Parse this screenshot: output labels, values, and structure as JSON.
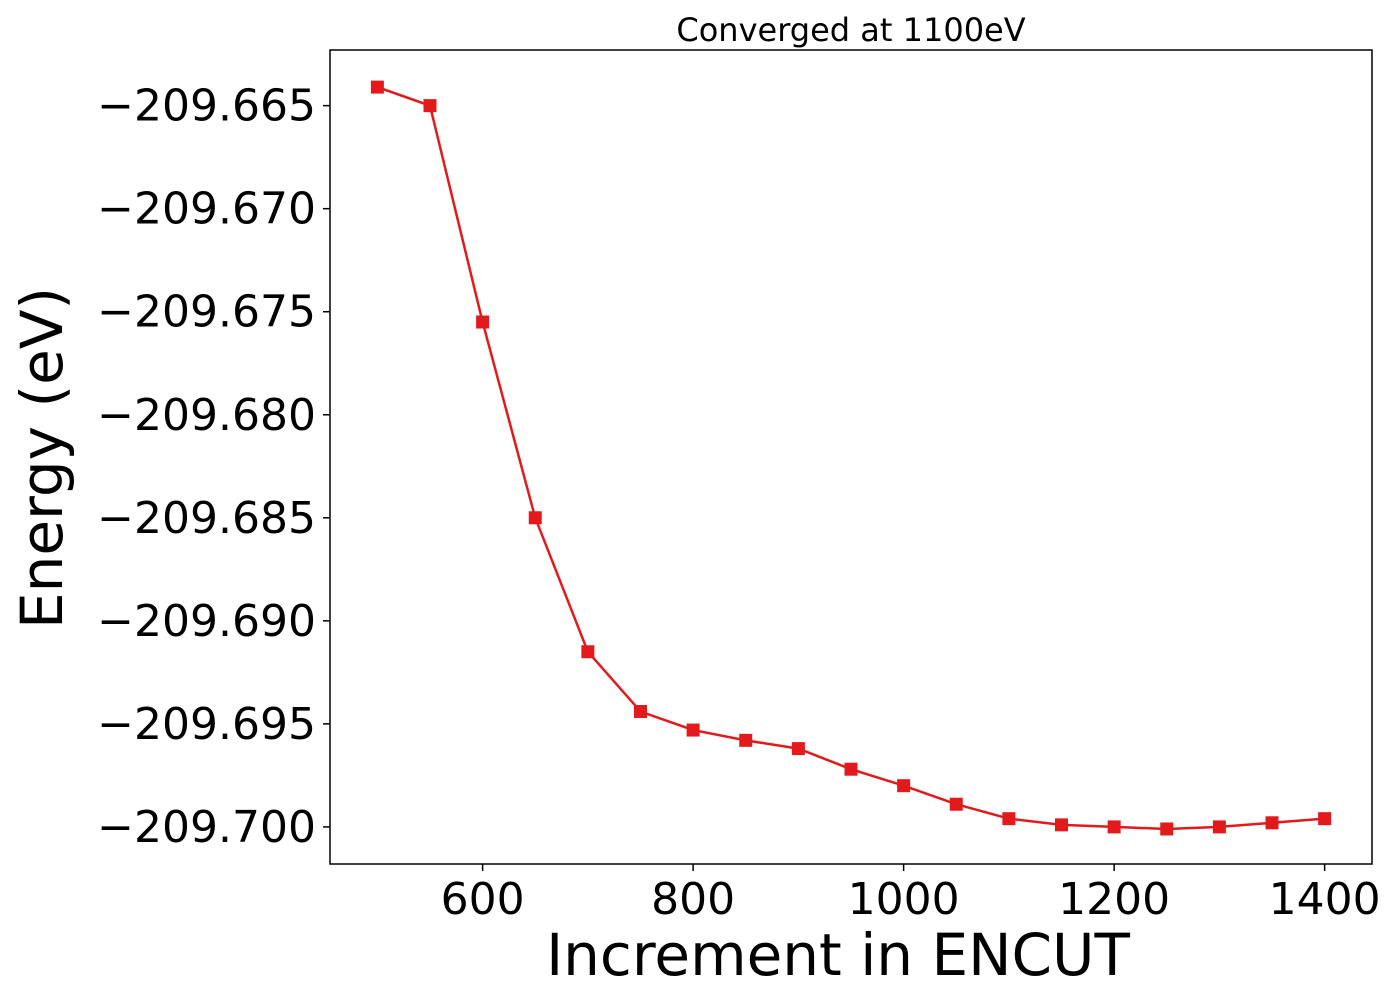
{
  "chart_data": {
    "type": "line",
    "title": "Converged at 1100eV",
    "xlabel": "Increment in ENCUT",
    "ylabel": "Energy (eV)",
    "xlim": [
      455,
      1445
    ],
    "ylim": [
      -209.7018,
      -209.6623
    ],
    "x_ticks": [
      600,
      800,
      1000,
      1200,
      1400
    ],
    "y_ticks": [
      -209.665,
      -209.67,
      -209.675,
      -209.68,
      -209.685,
      -209.69,
      -209.695,
      -209.7
    ],
    "x_tick_labels": [
      "600",
      "800",
      "1000",
      "1200",
      "1400"
    ],
    "y_tick_labels": [
      "−209.665",
      "−209.670",
      "−209.675",
      "−209.680",
      "−209.685",
      "−209.690",
      "−209.695",
      "−209.700"
    ],
    "grid": false,
    "series": [
      {
        "color": "#e31a1c",
        "marker": "square",
        "x": [
          500,
          550,
          600,
          650,
          700,
          750,
          800,
          850,
          900,
          950,
          1000,
          1050,
          1100,
          1150,
          1200,
          1250,
          1300,
          1350,
          1400
        ],
        "y": [
          -209.6641,
          -209.665,
          -209.6755,
          -209.685,
          -209.6915,
          -209.6944,
          -209.6953,
          -209.6958,
          -209.6962,
          -209.6972,
          -209.698,
          -209.6989,
          -209.6996,
          -209.6999,
          -209.7,
          -209.7001,
          -209.7,
          -209.6998,
          -209.6996
        ]
      }
    ]
  }
}
